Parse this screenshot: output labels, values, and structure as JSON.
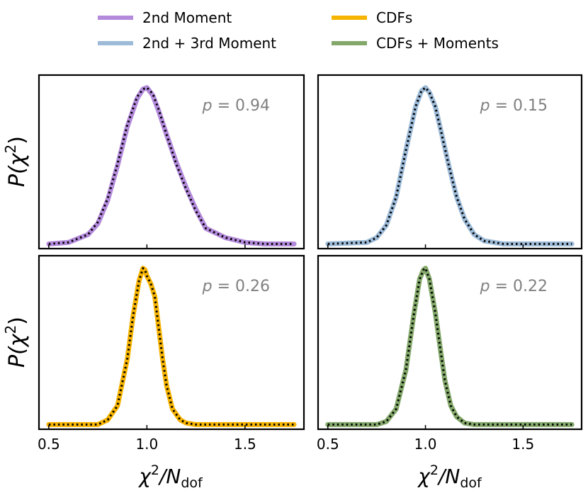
{
  "legend": {
    "items": [
      {
        "label": "2nd Moment",
        "color": "#B38ADB"
      },
      {
        "label": "2nd + 3rd Moment",
        "color": "#9DBBD8"
      },
      {
        "label": "CDFs",
        "color": "#F6B400"
      },
      {
        "label": "CDFs + Moments",
        "color": "#83A86A"
      }
    ]
  },
  "axes": {
    "ylabel_main": "P(χ",
    "ylabel_sup": "2",
    "ylabel_close": ")",
    "xlabel_main": "χ",
    "xlabel_sup": "2",
    "xlabel_mid": "/N",
    "xlabel_sub": "dof"
  },
  "chart_data": [
    {
      "type": "line",
      "panel": "top-left",
      "series": [
        {
          "name": "2nd Moment",
          "color": "#B38ADB",
          "kind": "histogram",
          "x": [
            0.5,
            0.6,
            0.7,
            0.75,
            0.8,
            0.85,
            0.9,
            0.95,
            0.98,
            1.0,
            1.03,
            1.06,
            1.1,
            1.15,
            1.2,
            1.25,
            1.3,
            1.4,
            1.5,
            1.6,
            1.75
          ],
          "y": [
            0.0,
            0.01,
            0.06,
            0.13,
            0.28,
            0.5,
            0.75,
            0.93,
            0.99,
            1.0,
            0.95,
            0.85,
            0.7,
            0.52,
            0.36,
            0.22,
            0.1,
            0.04,
            0.01,
            0.0,
            0.0
          ]
        },
        {
          "kind": "model",
          "color": "#000000",
          "x": [
            0.5,
            0.6,
            0.7,
            0.75,
            0.8,
            0.85,
            0.9,
            0.95,
            0.98,
            1.0,
            1.03,
            1.06,
            1.1,
            1.15,
            1.2,
            1.25,
            1.3,
            1.4,
            1.5,
            1.6,
            1.75
          ],
          "y": [
            0.0,
            0.01,
            0.06,
            0.14,
            0.29,
            0.51,
            0.76,
            0.94,
            0.99,
            1.0,
            0.96,
            0.86,
            0.7,
            0.51,
            0.35,
            0.21,
            0.1,
            0.04,
            0.01,
            0.0,
            0.0
          ]
        }
      ],
      "annotation": "p = 0.94",
      "xlim": [
        0.45,
        1.8
      ],
      "ylim": [
        -0.03,
        1.08
      ]
    },
    {
      "type": "line",
      "panel": "top-right",
      "series": [
        {
          "name": "2nd + 3rd Moment",
          "color": "#9DBBD8",
          "kind": "histogram",
          "x": [
            0.5,
            0.7,
            0.75,
            0.8,
            0.85,
            0.9,
            0.95,
            0.98,
            1.0,
            1.02,
            1.05,
            1.08,
            1.12,
            1.16,
            1.2,
            1.25,
            1.3,
            1.4,
            1.75
          ],
          "y": [
            0.0,
            0.01,
            0.04,
            0.12,
            0.3,
            0.6,
            0.88,
            0.98,
            1.0,
            0.97,
            0.88,
            0.72,
            0.5,
            0.3,
            0.16,
            0.06,
            0.02,
            0.0,
            0.0
          ]
        },
        {
          "kind": "model",
          "color": "#000000",
          "x": [
            0.5,
            0.7,
            0.75,
            0.8,
            0.85,
            0.9,
            0.95,
            0.98,
            1.0,
            1.02,
            1.05,
            1.08,
            1.12,
            1.16,
            1.2,
            1.25,
            1.3,
            1.4,
            1.75
          ],
          "y": [
            0.0,
            0.01,
            0.04,
            0.12,
            0.3,
            0.6,
            0.88,
            0.98,
            1.0,
            0.97,
            0.88,
            0.72,
            0.5,
            0.3,
            0.16,
            0.06,
            0.02,
            0.0,
            0.0
          ]
        }
      ],
      "annotation": "p = 0.15",
      "xlim": [
        0.45,
        1.8
      ],
      "ylim": [
        -0.03,
        1.08
      ]
    },
    {
      "type": "line",
      "panel": "bottom-left",
      "series": [
        {
          "name": "CDFs",
          "color": "#F6B400",
          "kind": "histogram",
          "x": [
            0.5,
            0.75,
            0.8,
            0.85,
            0.9,
            0.93,
            0.96,
            0.98,
            0.99,
            1.0,
            1.02,
            1.04,
            1.06,
            1.08,
            1.1,
            1.13,
            1.17,
            1.2,
            1.25,
            1.75
          ],
          "y": [
            0.0,
            0.0,
            0.03,
            0.12,
            0.42,
            0.7,
            0.92,
            1.0,
            0.99,
            0.95,
            0.9,
            0.82,
            0.62,
            0.42,
            0.25,
            0.1,
            0.03,
            0.01,
            0.0,
            0.0
          ]
        },
        {
          "kind": "model",
          "color": "#000000",
          "x": [
            0.5,
            0.75,
            0.8,
            0.85,
            0.9,
            0.93,
            0.96,
            0.98,
            0.99,
            1.0,
            1.02,
            1.04,
            1.06,
            1.08,
            1.1,
            1.13,
            1.17,
            1.2,
            1.25,
            1.75
          ],
          "y": [
            0.0,
            0.0,
            0.03,
            0.12,
            0.42,
            0.7,
            0.92,
            1.0,
            0.99,
            0.95,
            0.9,
            0.82,
            0.62,
            0.42,
            0.25,
            0.1,
            0.03,
            0.01,
            0.0,
            0.0
          ]
        }
      ],
      "annotation": "p = 0.26",
      "xlim": [
        0.45,
        1.8
      ],
      "ylim": [
        -0.03,
        1.08
      ]
    },
    {
      "type": "line",
      "panel": "bottom-right",
      "series": [
        {
          "name": "CDFs + Moments",
          "color": "#83A86A",
          "kind": "histogram",
          "x": [
            0.5,
            0.75,
            0.8,
            0.85,
            0.9,
            0.94,
            0.97,
            0.99,
            1.0,
            1.02,
            1.05,
            1.08,
            1.1,
            1.13,
            1.16,
            1.2,
            1.25,
            1.75
          ],
          "y": [
            0.0,
            0.0,
            0.02,
            0.1,
            0.35,
            0.7,
            0.93,
            0.99,
            1.0,
            0.93,
            0.72,
            0.45,
            0.28,
            0.12,
            0.05,
            0.01,
            0.0,
            0.0
          ]
        },
        {
          "kind": "model",
          "color": "#000000",
          "x": [
            0.5,
            0.75,
            0.8,
            0.85,
            0.9,
            0.94,
            0.97,
            0.99,
            1.0,
            1.02,
            1.05,
            1.08,
            1.1,
            1.13,
            1.16,
            1.2,
            1.25,
            1.75
          ],
          "y": [
            0.0,
            0.0,
            0.02,
            0.1,
            0.35,
            0.7,
            0.93,
            0.99,
            1.0,
            0.93,
            0.72,
            0.45,
            0.28,
            0.12,
            0.05,
            0.01,
            0.0,
            0.0
          ]
        }
      ],
      "annotation": "p = 0.22",
      "xlim": [
        0.45,
        1.8
      ],
      "ylim": [
        -0.03,
        1.08
      ]
    }
  ],
  "xticks": [
    {
      "value": 0.5,
      "label": "0.5"
    },
    {
      "value": 1.0,
      "label": "1.0"
    },
    {
      "value": 1.5,
      "label": "1.5"
    }
  ]
}
